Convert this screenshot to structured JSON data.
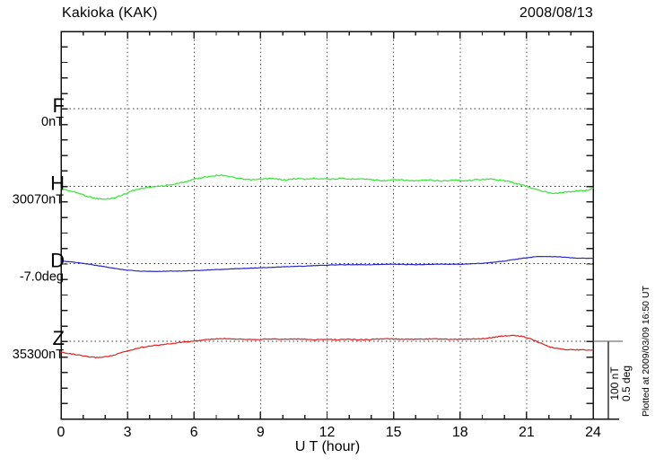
{
  "header": {
    "title": "Kakioka (KAK)",
    "date": "2008/08/13"
  },
  "chart_data": {
    "type": "line",
    "title": "Kakioka (KAK)",
    "date": "2008/08/13",
    "xlabel": "U T (hour)",
    "xlim": [
      0,
      24
    ],
    "x_major_ticks": [
      0,
      3,
      6,
      9,
      12,
      15,
      18,
      21,
      24
    ],
    "x_minor_tick_interval_hours": 1,
    "grid": "dotted vertical lines every 3 hours; dotted horizontal line at each channel baseline",
    "scale_bar": {
      "label_lines": [
        "100 nT",
        "0.5 deg"
      ],
      "nT_per_division": 100,
      "deg_per_division": 0.5
    },
    "plotted_at": "Plotted at 2009/03/09 16:50 UT",
    "series": [
      {
        "id": "F",
        "label": "F",
        "baseline_label": "0nT",
        "unit": "nT",
        "baseline_value": 0,
        "label_color": "#FFAA00",
        "trace_color": "#FFAA00",
        "has_trace": false,
        "points_are": "offset from baseline_value in nT",
        "points": []
      },
      {
        "id": "H",
        "label": "H",
        "baseline_label": "30070nT",
        "unit": "nT",
        "baseline_value": 30070,
        "label_color": "#00C400",
        "trace_color": "#30E830",
        "has_trace": true,
        "points_are": "offset from baseline_value in nT",
        "points": [
          [
            0,
            -3
          ],
          [
            0.4,
            -6
          ],
          [
            0.8,
            -9
          ],
          [
            1.2,
            -13
          ],
          [
            1.6,
            -16
          ],
          [
            2.0,
            -17
          ],
          [
            2.4,
            -15
          ],
          [
            2.8,
            -11
          ],
          [
            3.2,
            -6
          ],
          [
            3.6,
            -3
          ],
          [
            4.0,
            -1
          ],
          [
            4.5,
            0
          ],
          [
            5.0,
            2
          ],
          [
            5.5,
            5
          ],
          [
            6.0,
            9
          ],
          [
            6.5,
            12
          ],
          [
            7.0,
            14
          ],
          [
            7.4,
            14
          ],
          [
            7.8,
            11
          ],
          [
            8.2,
            9
          ],
          [
            8.6,
            8
          ],
          [
            9.0,
            9
          ],
          [
            9.4,
            10
          ],
          [
            9.8,
            9
          ],
          [
            10.2,
            8
          ],
          [
            10.6,
            10
          ],
          [
            11.0,
            9
          ],
          [
            11.4,
            10
          ],
          [
            11.8,
            10
          ],
          [
            12.2,
            9
          ],
          [
            12.6,
            10
          ],
          [
            13.0,
            9
          ],
          [
            13.4,
            10
          ],
          [
            13.8,
            9
          ],
          [
            14.2,
            8
          ],
          [
            14.6,
            7
          ],
          [
            15.0,
            8
          ],
          [
            15.4,
            8
          ],
          [
            15.8,
            7
          ],
          [
            16.2,
            7
          ],
          [
            16.6,
            8
          ],
          [
            17.0,
            7
          ],
          [
            17.4,
            7
          ],
          [
            17.8,
            8
          ],
          [
            18.2,
            7
          ],
          [
            18.6,
            8
          ],
          [
            19.0,
            9
          ],
          [
            19.4,
            9
          ],
          [
            19.8,
            8
          ],
          [
            20.2,
            6
          ],
          [
            20.6,
            3
          ],
          [
            21.0,
            0
          ],
          [
            21.4,
            -4
          ],
          [
            21.8,
            -7
          ],
          [
            22.2,
            -9
          ],
          [
            22.6,
            -8
          ],
          [
            23.0,
            -7
          ],
          [
            23.4,
            -6
          ],
          [
            23.8,
            -5
          ],
          [
            24,
            -2
          ]
        ]
      },
      {
        "id": "D",
        "label": "D",
        "baseline_label": "-7.0deg",
        "unit": "deg",
        "baseline_value": -7.0,
        "label_color": "#1515CC",
        "trace_color": "#2828CC",
        "has_trace": true,
        "points_are": "offset from baseline_value in deg",
        "points": [
          [
            0,
            0.017
          ],
          [
            0.5,
            0.012
          ],
          [
            1.0,
            0.003
          ],
          [
            1.5,
            -0.009
          ],
          [
            2.0,
            -0.02
          ],
          [
            2.5,
            -0.032
          ],
          [
            3.0,
            -0.041
          ],
          [
            3.5,
            -0.047
          ],
          [
            4.0,
            -0.049
          ],
          [
            4.5,
            -0.049
          ],
          [
            5.0,
            -0.047
          ],
          [
            5.5,
            -0.047
          ],
          [
            6.0,
            -0.044
          ],
          [
            6.5,
            -0.041
          ],
          [
            7.0,
            -0.038
          ],
          [
            7.5,
            -0.035
          ],
          [
            8.0,
            -0.032
          ],
          [
            8.5,
            -0.029
          ],
          [
            9.0,
            -0.026
          ],
          [
            9.5,
            -0.023
          ],
          [
            10.0,
            -0.02
          ],
          [
            10.5,
            -0.017
          ],
          [
            11.0,
            -0.015
          ],
          [
            11.5,
            -0.012
          ],
          [
            12.0,
            -0.009
          ],
          [
            12.5,
            -0.007
          ],
          [
            13.0,
            -0.006
          ],
          [
            13.5,
            -0.006
          ],
          [
            14.0,
            -0.006
          ],
          [
            14.5,
            -0.004
          ],
          [
            15.0,
            -0.003
          ],
          [
            15.5,
            -0.005
          ],
          [
            16.0,
            -0.006
          ],
          [
            16.5,
            -0.004
          ],
          [
            17.0,
            -0.003
          ],
          [
            17.5,
            -0.003
          ],
          [
            18.0,
            -0.003
          ],
          [
            18.5,
            0.0
          ],
          [
            19.0,
            0.003
          ],
          [
            19.5,
            0.009
          ],
          [
            20.0,
            0.017
          ],
          [
            20.5,
            0.029
          ],
          [
            21.0,
            0.038
          ],
          [
            21.5,
            0.047
          ],
          [
            22.0,
            0.047
          ],
          [
            22.5,
            0.044
          ],
          [
            23.0,
            0.038
          ],
          [
            23.5,
            0.035
          ],
          [
            24,
            0.035
          ]
        ]
      },
      {
        "id": "Z",
        "label": "Z",
        "baseline_label": "35300nT",
        "unit": "nT",
        "baseline_value": 35300,
        "label_color": "#DD1010",
        "trace_color": "#E81C1C",
        "has_trace": true,
        "points_are": "offset from baseline_value in nT",
        "points": [
          [
            0,
            -14
          ],
          [
            0.4,
            -16
          ],
          [
            0.8,
            -18
          ],
          [
            1.2,
            -20
          ],
          [
            1.6,
            -21
          ],
          [
            2.0,
            -20
          ],
          [
            2.4,
            -18
          ],
          [
            2.8,
            -14
          ],
          [
            3.2,
            -11
          ],
          [
            3.6,
            -8
          ],
          [
            4.0,
            -6
          ],
          [
            4.5,
            -4.5
          ],
          [
            5.0,
            -3
          ],
          [
            5.5,
            -1
          ],
          [
            6.0,
            0
          ],
          [
            6.5,
            2
          ],
          [
            7.0,
            3
          ],
          [
            7.5,
            3.5
          ],
          [
            8.0,
            3
          ],
          [
            8.5,
            2.5
          ],
          [
            9.0,
            2.5
          ],
          [
            9.5,
            3
          ],
          [
            10.0,
            2.5
          ],
          [
            10.5,
            3
          ],
          [
            11.0,
            2.5
          ],
          [
            11.5,
            2
          ],
          [
            12.0,
            2.5
          ],
          [
            12.5,
            2
          ],
          [
            13.0,
            2.5
          ],
          [
            13.5,
            2
          ],
          [
            14.0,
            2.5
          ],
          [
            14.5,
            3
          ],
          [
            15.0,
            3
          ],
          [
            15.5,
            2.5
          ],
          [
            16.0,
            2.5
          ],
          [
            16.5,
            3
          ],
          [
            17.0,
            3
          ],
          [
            17.5,
            2.5
          ],
          [
            18.0,
            2.5
          ],
          [
            18.5,
            3
          ],
          [
            19.0,
            3.5
          ],
          [
            19.5,
            5
          ],
          [
            20.0,
            7
          ],
          [
            20.4,
            7.5
          ],
          [
            20.8,
            6.5
          ],
          [
            21.2,
            3
          ],
          [
            21.6,
            -2
          ],
          [
            22.0,
            -7
          ],
          [
            22.4,
            -9.5
          ],
          [
            22.8,
            -10.5
          ],
          [
            23.2,
            -11
          ],
          [
            23.6,
            -11
          ],
          [
            24,
            -11.5
          ]
        ]
      }
    ]
  }
}
